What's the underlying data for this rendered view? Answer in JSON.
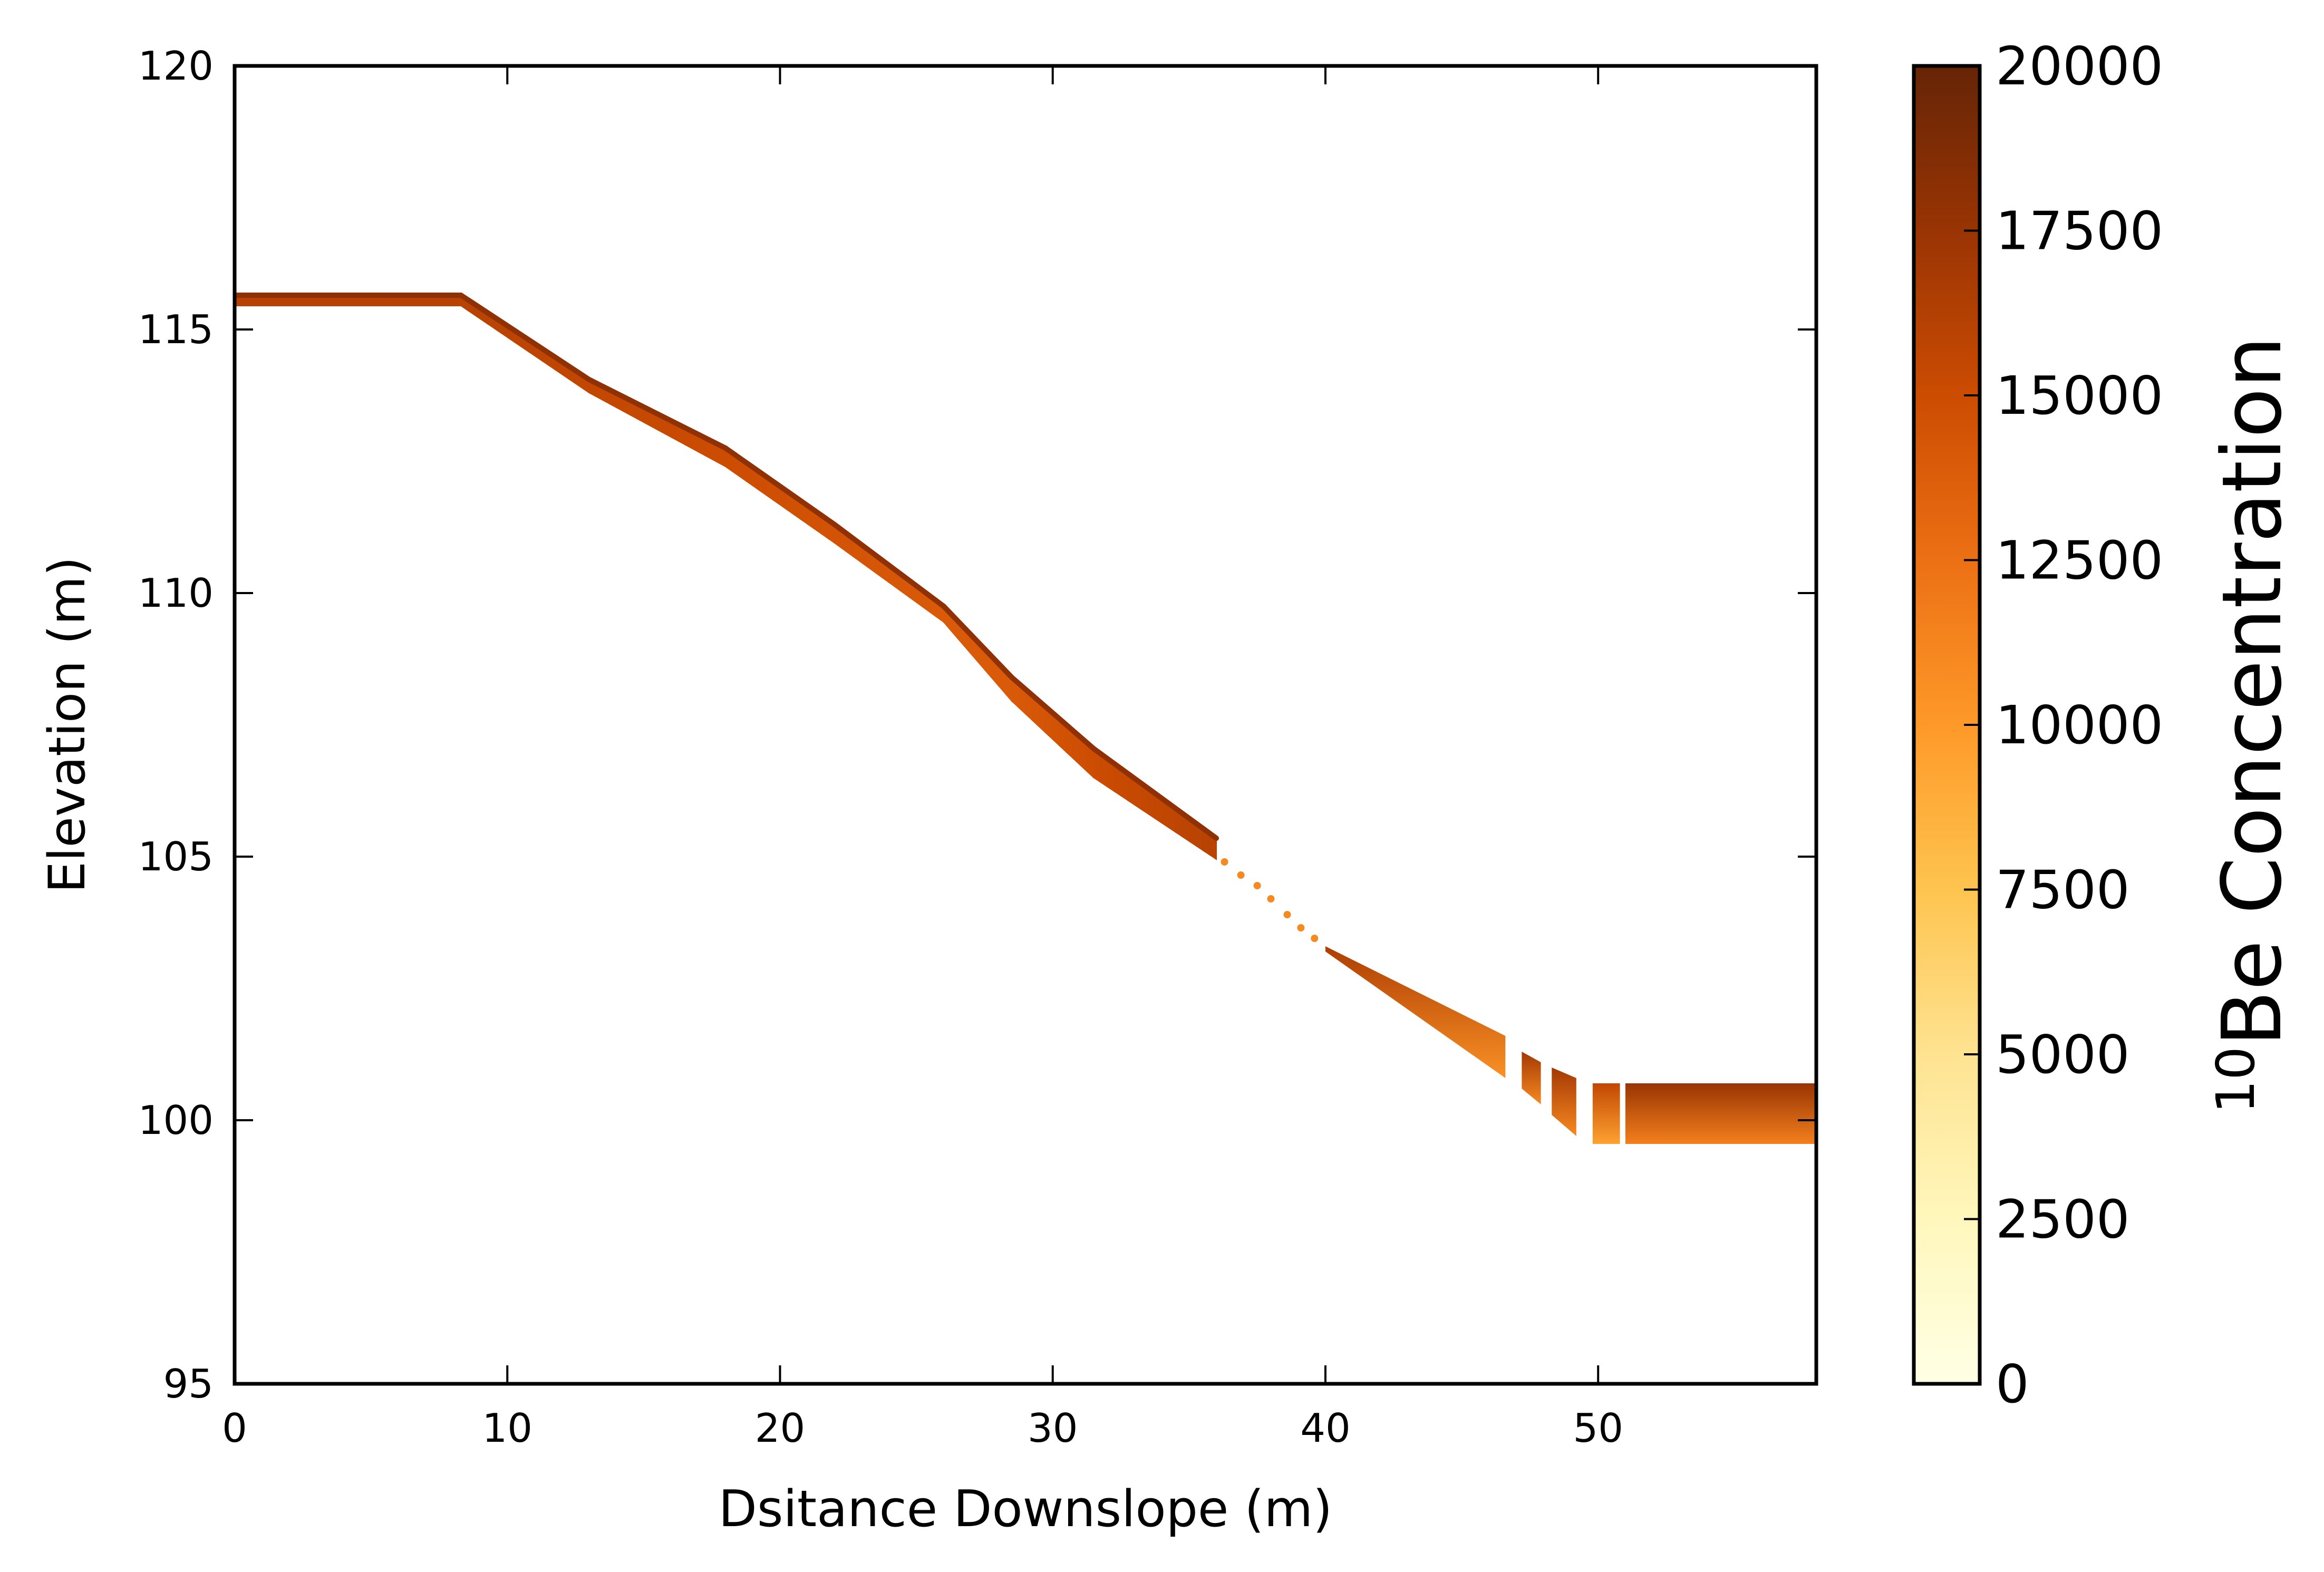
{
  "chart_data": {
    "type": "scatter",
    "xlabel": "Dsitance Downslope (m)",
    "ylabel": "Elevation (m)",
    "xlim": [
      0,
      58
    ],
    "ylim": [
      95,
      120
    ],
    "x_ticks": [
      0,
      10,
      20,
      30,
      40,
      50
    ],
    "y_ticks": [
      95,
      100,
      105,
      110,
      115,
      120
    ],
    "grid": false,
    "colorbar": {
      "label_superscript": "10",
      "label": "Be Concentration",
      "range": [
        0,
        20000
      ],
      "ticks": [
        0,
        2500,
        5000,
        7500,
        10000,
        12500,
        15000,
        17500,
        20000
      ],
      "colormap": "YlOrBr",
      "colors": [
        "#ffffe5",
        "#fff7bc",
        "#fee391",
        "#fec44f",
        "#fe9929",
        "#ec7014",
        "#cc4c02",
        "#993404",
        "#662506"
      ]
    },
    "profile": {
      "description_points": [
        {
          "x": 0,
          "top": 115.65,
          "bottom": 115.45,
          "c": 16000
        },
        {
          "x": 8.3,
          "top": 115.65,
          "bottom": 115.45,
          "c": 16000
        },
        {
          "x": 13,
          "top": 114.05,
          "bottom": 113.8,
          "c": 15500
        },
        {
          "x": 18,
          "top": 112.75,
          "bottom": 112.4,
          "c": 15000
        },
        {
          "x": 22,
          "top": 111.3,
          "bottom": 110.95,
          "c": 14500
        },
        {
          "x": 26,
          "top": 109.75,
          "bottom": 109.45,
          "c": 14000
        },
        {
          "x": 28.5,
          "top": 108.4,
          "bottom": 107.95,
          "c": 14000
        },
        {
          "x": 31.5,
          "top": 107.05,
          "bottom": 106.5,
          "c": 15000
        },
        {
          "x": 36,
          "top": 105.35,
          "bottom": 104.95,
          "c": 16000
        }
      ],
      "gap_points": [
        {
          "x": 36.3,
          "y": 104.9,
          "c": 11000
        },
        {
          "x": 36.9,
          "y": 104.65,
          "c": 11000
        },
        {
          "x": 37.5,
          "y": 104.45,
          "c": 11000
        },
        {
          "x": 38.0,
          "y": 104.2,
          "c": 11000
        },
        {
          "x": 38.6,
          "y": 103.9,
          "c": 11000
        },
        {
          "x": 39.1,
          "y": 103.65,
          "c": 11000
        },
        {
          "x": 39.6,
          "y": 103.45,
          "c": 11000
        }
      ],
      "lower_segments": [
        {
          "x0": 40.0,
          "x1": 46.6,
          "top0": 103.3,
          "top1": 101.6,
          "bot0": 103.2,
          "bot1": 100.8,
          "c": 14000
        },
        {
          "x0": 47.2,
          "x1": 47.9,
          "top0": 101.3,
          "top1": 101.1,
          "bot0": 100.6,
          "bot1": 100.3,
          "c": 14500
        },
        {
          "x0": 48.3,
          "x1": 49.2,
          "top0": 101.0,
          "top1": 100.8,
          "bot0": 100.1,
          "bot1": 99.7,
          "c": 14500
        },
        {
          "x0": 49.8,
          "x1": 50.8,
          "top0": 100.7,
          "top1": 100.7,
          "bot0": 99.55,
          "bot1": 99.55,
          "c": 13000
        },
        {
          "x0": 51.0,
          "x1": 58.0,
          "top0": 100.7,
          "top1": 100.7,
          "bot0": 99.55,
          "bot1": 99.55,
          "c": 15000
        }
      ]
    }
  }
}
